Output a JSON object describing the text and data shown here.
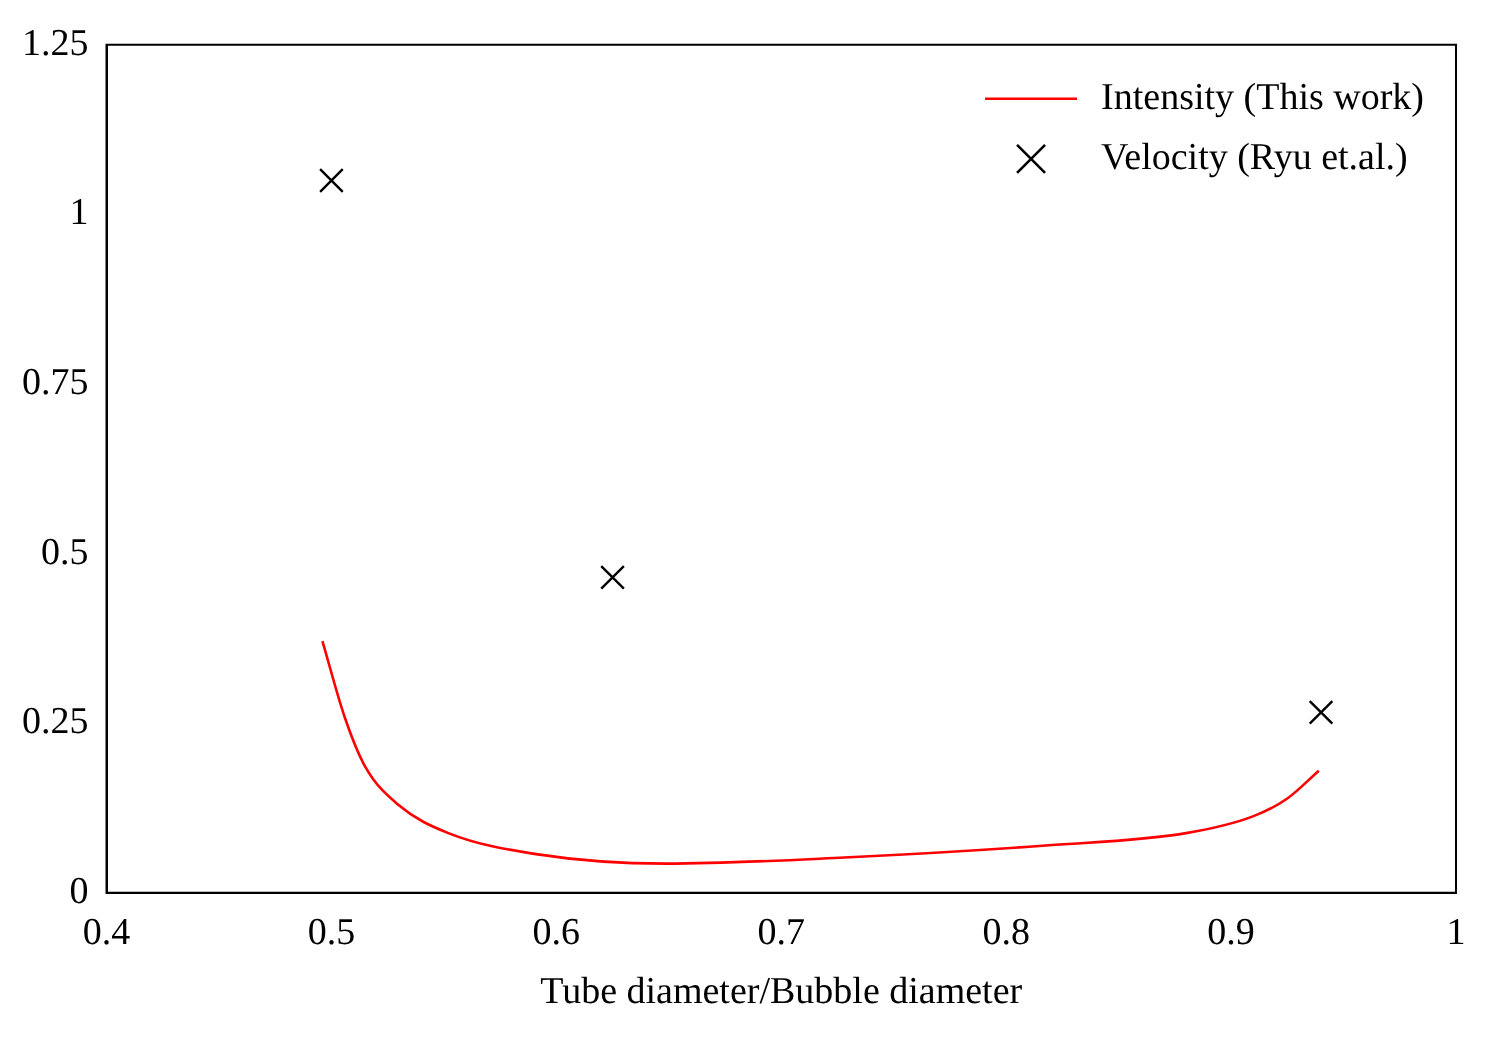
{
  "chart_data": {
    "type": "line",
    "xlabel": "Tube diameter/Bubble diameter",
    "xlim": [
      0.4,
      1
    ],
    "xticks": [
      0.4,
      0.5,
      0.6,
      0.7,
      0.8,
      0.9,
      1
    ],
    "ylim": [
      0,
      1.25
    ],
    "yticks": [
      0,
      0.25,
      0.5,
      0.75,
      1,
      1.25
    ],
    "grid": false,
    "legend": "top right",
    "series": [
      {
        "name": "Intensity (This work)",
        "color": "#ff0000",
        "marker": "none",
        "line_style": "solid",
        "x": [
          0.496,
          0.506,
          0.515,
          0.53,
          0.552,
          0.591,
          0.649,
          0.728,
          0.819,
          0.88,
          0.91,
          0.925,
          0.939
        ],
        "values": [
          0.371,
          0.258,
          0.186,
          0.129,
          0.088,
          0.057,
          0.043,
          0.052,
          0.07,
          0.088,
          0.113,
          0.139,
          0.18
        ]
      },
      {
        "name": "Velocity (Ryu et.al.)",
        "type": "scatter",
        "color": "#000000",
        "marker": "cross",
        "x": [
          0.5,
          0.625,
          0.94
        ],
        "values": [
          1.05,
          0.465,
          0.266
        ]
      }
    ]
  }
}
